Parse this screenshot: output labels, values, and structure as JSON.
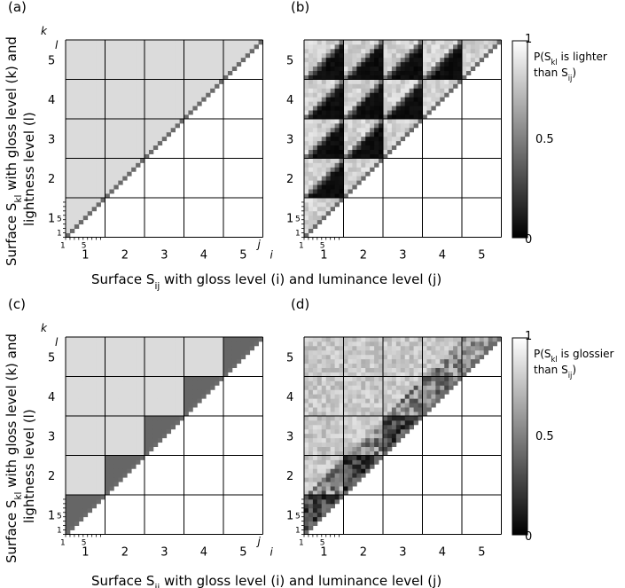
{
  "panel_labels": [
    "(a)",
    "(b)",
    "(c)",
    "(d)"
  ],
  "axis_labels": {
    "y_line1": "Surface S",
    "y_sub": "kl",
    "y_line1_rest": " with gloss level (k) and",
    "y_line2": "lightness level (l)",
    "x_pre": "Surface S",
    "x_sub": "ij",
    "x_post": " with gloss level (i) and luminance level (j)",
    "k": "k",
    "l": "l",
    "i": "i",
    "j": "j"
  },
  "group_ticks": [
    "1",
    "2",
    "3",
    "4",
    "5"
  ],
  "minor_ticks": [
    "1",
    "5"
  ],
  "colorbars": [
    {
      "top": "1",
      "mid": "0.5",
      "bottom": "0",
      "label_pre": "P(S",
      "label_sub": "kl",
      "label_post": " is lighter",
      "label2_pre": "than S",
      "label2_sub": "ij",
      "label2_post": ")"
    },
    {
      "top": "1",
      "mid": "0.5",
      "bottom": "0",
      "label_pre": "P(S",
      "label_sub": "kl",
      "label_post": " is glossier",
      "label2_pre": "than S",
      "label2_sub": "ij",
      "label2_post": ")"
    }
  ],
  "chart_data": [
    {
      "type": "heatmap",
      "panel": "(a)",
      "description_rule": "lower-triangular matrix of pairwise comparisons; 5 gloss levels x 9 luminance levels; cell value = P(S_kl lighter than S_ij)",
      "groups": 5,
      "levels_per_group": 9,
      "value_range": [
        0,
        1
      ],
      "block_values": {
        "off_diagonal_gloss": 0.88,
        "diagonal_gloss_above": 0.88,
        "diagonal_gloss_below": 0.0,
        "diagonal_cell": 0.5
      }
    },
    {
      "type": "heatmap",
      "panel": "(b)",
      "description_rule": "empirical P(S_kl lighter than S_ij); values near 0 below the luminance diagonal and near 0.85 above",
      "groups": 5,
      "levels_per_group": 9,
      "value_range": [
        0,
        1
      ],
      "block_values": {
        "above_luminance": 0.85,
        "below_luminance": 0.03,
        "diagonal_cell": 0.45
      }
    },
    {
      "type": "heatmap",
      "panel": "(c)",
      "description_rule": "model P(S_kl glossier than S_ij); 0.88 when k>i, 0.5 when k=i",
      "groups": 5,
      "levels_per_group": 9,
      "value_range": [
        0,
        1
      ],
      "block_values": {
        "higher_gloss": 0.88,
        "same_gloss": 0.5
      }
    },
    {
      "type": "heatmap",
      "panel": "(d)",
      "description_rule": "empirical P(S_kl glossier than S_ij); mostly light when k>i, darker patterns near the diagonal",
      "groups": 5,
      "levels_per_group": 9,
      "value_range": [
        0,
        1
      ],
      "block_values": {
        "higher_gloss": 0.85,
        "same_gloss_low": 0.1,
        "same_gloss_high": 0.55
      }
    }
  ]
}
